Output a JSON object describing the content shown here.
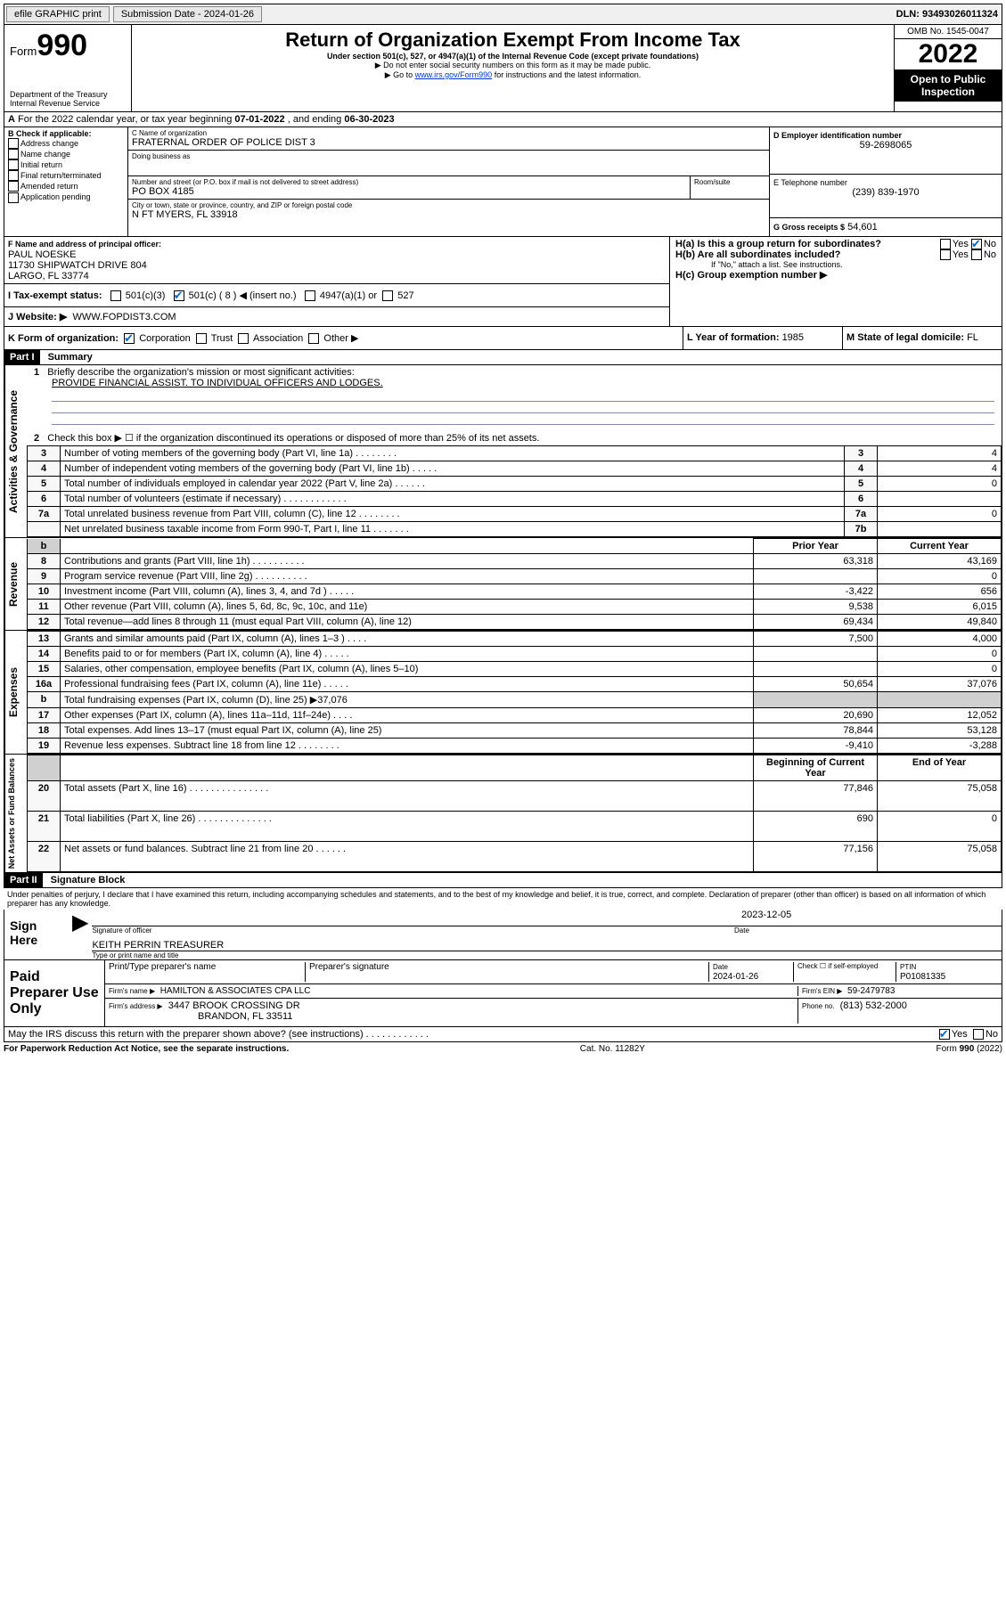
{
  "topbar": {
    "efile": "efile GRAPHIC print",
    "subdate_label": "Submission Date - ",
    "subdate": "2024-01-26",
    "dln_label": "DLN: ",
    "dln": "93493026011324"
  },
  "header": {
    "form_label": "Form",
    "form_num": "990",
    "dept": "Department of the Treasury",
    "irs": "Internal Revenue Service",
    "title": "Return of Organization Exempt From Income Tax",
    "sub1": "Under section 501(c), 527, or 4947(a)(1) of the Internal Revenue Code (except private foundations)",
    "sub2": "Do not enter social security numbers on this form as it may be made public.",
    "sub3_pre": "Go to ",
    "sub3_link": "www.irs.gov/Form990",
    "sub3_post": " for instructions and the latest information.",
    "omb": "OMB No. 1545-0047",
    "year": "2022",
    "open": "Open to Public Inspection"
  },
  "A": {
    "text_pre": "For the 2022 calendar year, or tax year beginning ",
    "begin": "07-01-2022",
    "text_mid": " , and ending ",
    "end": "06-30-2023"
  },
  "B": {
    "label": "B Check if applicable:",
    "opts": [
      "Address change",
      "Name change",
      "Initial return",
      "Final return/terminated",
      "Amended return",
      "Application pending"
    ]
  },
  "C": {
    "name_label": "C Name of organization",
    "name": "FRATERNAL ORDER OF POLICE DIST 3",
    "dba_label": "Doing business as",
    "addr_label": "Number and street (or P.O. box if mail is not delivered to street address)",
    "room_label": "Room/suite",
    "addr": "PO BOX 4185",
    "city_label": "City or town, state or province, country, and ZIP or foreign postal code",
    "city": "N FT MYERS, FL  33918"
  },
  "D": {
    "label": "D Employer identification number",
    "val": "59-2698065"
  },
  "E": {
    "label": "E Telephone number",
    "val": "(239) 839-1970"
  },
  "G": {
    "label": "G Gross receipts $",
    "val": "54,601"
  },
  "F": {
    "label": "F Name and address of principal officer:",
    "name": "PAUL NOESKE",
    "addr1": "11730 SHIPWATCH DRIVE 804",
    "addr2": "LARGO, FL  33774"
  },
  "H": {
    "a": "H(a)  Is this a group return for subordinates?",
    "b": "H(b)  Are all subordinates included?",
    "b_note": "If \"No,\" attach a list. See instructions.",
    "c": "H(c)  Group exemption number ▶",
    "yes": "Yes",
    "no": "No"
  },
  "I": {
    "label": "I   Tax-exempt status:",
    "o1": "501(c)(3)",
    "o2": "501(c) ( 8 ) ◀ (insert no.)",
    "o3": "4947(a)(1) or",
    "o4": "527"
  },
  "J": {
    "label": "J   Website: ▶",
    "val": "WWW.FOPDIST3.COM"
  },
  "K": {
    "label": "K Form of organization:",
    "opts": [
      "Corporation",
      "Trust",
      "Association",
      "Other ▶"
    ]
  },
  "L": {
    "label": "L Year of formation: ",
    "val": "1985"
  },
  "M": {
    "label": "M State of legal domicile: ",
    "val": "FL"
  },
  "part1": {
    "header": "Part I",
    "title": "Summary",
    "l1": "Briefly describe the organization's mission or most significant activities:",
    "l1v": "PROVIDE FINANCIAL ASSIST. TO INDIVIDUAL OFFICERS AND LODGES.",
    "l2": "Check this box ▶ ☐ if the organization discontinued its operations or disposed of more than 25% of its net assets.",
    "rows_gov": [
      {
        "n": "3",
        "t": "Number of voting members of the governing body (Part VI, line 1a)  .   .   .   .   .   .   .   .",
        "b": "3",
        "v": "4"
      },
      {
        "n": "4",
        "t": "Number of independent voting members of the governing body (Part VI, line 1b)  .   .   .   .   .",
        "b": "4",
        "v": "4"
      },
      {
        "n": "5",
        "t": "Total number of individuals employed in calendar year 2022 (Part V, line 2a)  .   .   .   .   .   .",
        "b": "5",
        "v": "0"
      },
      {
        "n": "6",
        "t": "Total number of volunteers (estimate if necessary)  .   .   .   .   .   .   .   .   .   .   .   .",
        "b": "6",
        "v": ""
      },
      {
        "n": "7a",
        "t": "Total unrelated business revenue from Part VIII, column (C), line 12  .   .   .   .   .   .   .   .",
        "b": "7a",
        "v": "0"
      },
      {
        "n": "",
        "t": "Net unrelated business taxable income from Form 990-T, Part I, line 11  .   .   .   .   .   .   .",
        "b": "7b",
        "v": ""
      }
    ],
    "col_prior": "Prior Year",
    "col_curr": "Current Year",
    "rows_rev": [
      {
        "n": "8",
        "t": "Contributions and grants (Part VIII, line 1h)  .   .   .   .   .   .   .   .   .   .",
        "p": "63,318",
        "c": "43,169"
      },
      {
        "n": "9",
        "t": "Program service revenue (Part VIII, line 2g)  .   .   .   .   .   .   .   .   .   .",
        "p": "",
        "c": "0"
      },
      {
        "n": "10",
        "t": "Investment income (Part VIII, column (A), lines 3, 4, and 7d )  .   .   .   .   .",
        "p": "-3,422",
        "c": "656"
      },
      {
        "n": "11",
        "t": "Other revenue (Part VIII, column (A), lines 5, 6d, 8c, 9c, 10c, and 11e)",
        "p": "9,538",
        "c": "6,015"
      },
      {
        "n": "12",
        "t": "Total revenue—add lines 8 through 11 (must equal Part VIII, column (A), line 12)",
        "p": "69,434",
        "c": "49,840"
      }
    ],
    "rows_exp": [
      {
        "n": "13",
        "t": "Grants and similar amounts paid (Part IX, column (A), lines 1–3 )  .   .   .   .",
        "p": "7,500",
        "c": "4,000"
      },
      {
        "n": "14",
        "t": "Benefits paid to or for members (Part IX, column (A), line 4)  .   .   .   .   .",
        "p": "",
        "c": "0"
      },
      {
        "n": "15",
        "t": "Salaries, other compensation, employee benefits (Part IX, column (A), lines 5–10)",
        "p": "",
        "c": "0"
      },
      {
        "n": "16a",
        "t": "Professional fundraising fees (Part IX, column (A), line 11e)  .   .   .   .   .",
        "p": "50,654",
        "c": "37,076"
      },
      {
        "n": "b",
        "t": "Total fundraising expenses (Part IX, column (D), line 25) ▶37,076",
        "p": "GREY",
        "c": "GREY"
      },
      {
        "n": "17",
        "t": "Other expenses (Part IX, column (A), lines 11a–11d, 11f–24e)  .   .   .   .",
        "p": "20,690",
        "c": "12,052"
      },
      {
        "n": "18",
        "t": "Total expenses. Add lines 13–17 (must equal Part IX, column (A), line 25)",
        "p": "78,844",
        "c": "53,128"
      },
      {
        "n": "19",
        "t": "Revenue less expenses. Subtract line 18 from line 12  .   .   .   .   .   .   .   .",
        "p": "-9,410",
        "c": "-3,288"
      }
    ],
    "col_beg": "Beginning of Current Year",
    "col_end": "End of Year",
    "rows_net": [
      {
        "n": "20",
        "t": "Total assets (Part X, line 16)  .   .   .   .   .   .   .   .   .   .   .   .   .   .   .",
        "p": "77,846",
        "c": "75,058"
      },
      {
        "n": "21",
        "t": "Total liabilities (Part X, line 26)  .   .   .   .   .   .   .   .   .   .   .   .   .   .",
        "p": "690",
        "c": "0"
      },
      {
        "n": "22",
        "t": "Net assets or fund balances. Subtract line 21 from line 20  .   .   .   .   .   .",
        "p": "77,156",
        "c": "75,058"
      }
    ],
    "vtext_gov": "Activities & Governance",
    "vtext_rev": "Revenue",
    "vtext_exp": "Expenses",
    "vtext_net": "Net Assets or Fund Balances"
  },
  "part2": {
    "header": "Part II",
    "title": "Signature Block",
    "decl": "Under penalties of perjury, I declare that I have examined this return, including accompanying schedules and statements, and to the best of my knowledge and belief, it is true, correct, and complete. Declaration of preparer (other than officer) is based on all information of which preparer has any knowledge.",
    "sign": "Sign Here",
    "sig_officer": "Signature of officer",
    "sig_date_label": "Date",
    "sig_date": "2023-12-05",
    "sig_name": "KEITH PERRIN  TREASURER",
    "sig_name_label": "Type or print name and title",
    "paid": "Paid Preparer Use Only",
    "prep_name_label": "Print/Type preparer's name",
    "prep_sig_label": "Preparer's signature",
    "prep_date_label": "Date",
    "prep_date": "2024-01-26",
    "prep_check": "Check ☐ if self-employed",
    "ptin_label": "PTIN",
    "ptin": "P01081335",
    "firm_name_label": "Firm's name     ▶",
    "firm_name": "HAMILTON & ASSOCIATES CPA LLC",
    "firm_ein_label": "Firm's EIN ▶",
    "firm_ein": "59-2479783",
    "firm_addr_label": "Firm's address ▶",
    "firm_addr1": "3447 BROOK CROSSING DR",
    "firm_addr2": "BRANDON, FL  33511",
    "phone_label": "Phone no.",
    "phone": "(813) 532-2000",
    "discuss": "May the IRS discuss this return with the preparer shown above? (see instructions)  .   .   .   .   .   .   .   .   .   .   .   .",
    "yes": "Yes",
    "no": "No"
  },
  "footer": {
    "left": "For Paperwork Reduction Act Notice, see the separate instructions.",
    "mid": "Cat. No. 11282Y",
    "right": "Form 990 (2022)"
  }
}
